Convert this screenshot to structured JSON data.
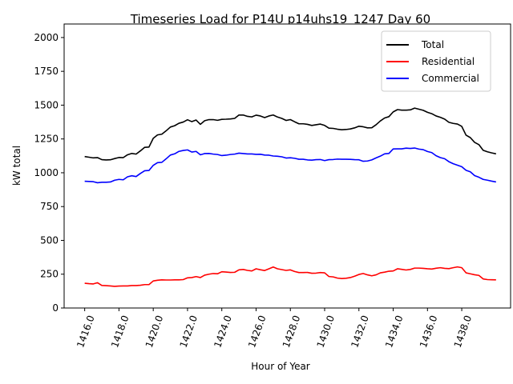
{
  "chart_data": {
    "type": "line",
    "title": "Timeseries Load for P14U p14uhs19_1247  Day 60",
    "xlabel": "Hour of Year",
    "ylabel": "kW total",
    "xlim": [
      1414.8,
      1440.85
    ],
    "ylim": [
      0,
      2100
    ],
    "xticks": [
      1416,
      1418,
      1420,
      1422,
      1424,
      1426,
      1428,
      1430,
      1432,
      1434,
      1436,
      1438
    ],
    "xtick_labels": [
      "1416.0",
      "1418.0",
      "1420.0",
      "1422.0",
      "1424.0",
      "1426.0",
      "1428.0",
      "1430.0",
      "1432.0",
      "1434.0",
      "1436.0",
      "1438.0"
    ],
    "yticks": [
      0,
      250,
      500,
      750,
      1000,
      1250,
      1500,
      1750,
      2000
    ],
    "ytick_labels": [
      "0",
      "250",
      "500",
      "750",
      "1000",
      "1250",
      "1500",
      "1750",
      "2000"
    ],
    "legend_position": "top-right",
    "x_start": 1416.0,
    "x_step": 0.25,
    "series": [
      {
        "name": "Total",
        "color": "#000000",
        "values": [
          1120,
          1115,
          1110,
          1112,
          1097,
          1095,
          1096,
          1105,
          1113,
          1112,
          1133,
          1143,
          1138,
          1162,
          1188,
          1190,
          1255,
          1280,
          1285,
          1310,
          1338,
          1348,
          1366,
          1375,
          1392,
          1378,
          1390,
          1358,
          1385,
          1393,
          1393,
          1388,
          1395,
          1396,
          1398,
          1402,
          1427,
          1427,
          1417,
          1413,
          1426,
          1420,
          1408,
          1420,
          1427,
          1412,
          1402,
          1387,
          1393,
          1377,
          1362,
          1362,
          1358,
          1350,
          1355,
          1360,
          1350,
          1330,
          1328,
          1322,
          1318,
          1320,
          1324,
          1332,
          1344,
          1340,
          1332,
          1333,
          1355,
          1383,
          1405,
          1415,
          1450,
          1467,
          1463,
          1463,
          1465,
          1478,
          1470,
          1462,
          1447,
          1437,
          1420,
          1410,
          1397,
          1373,
          1365,
          1360,
          1343,
          1278,
          1260,
          1225,
          1208,
          1166,
          1155,
          1147,
          1140
        ]
      },
      {
        "name": "Residential",
        "color": "#ff0000",
        "values": [
          183,
          180,
          178,
          187,
          167,
          165,
          163,
          160,
          162,
          163,
          163,
          166,
          166,
          168,
          173,
          173,
          200,
          205,
          208,
          207,
          207,
          208,
          208,
          210,
          223,
          225,
          232,
          225,
          243,
          250,
          255,
          253,
          268,
          266,
          263,
          264,
          282,
          285,
          278,
          274,
          290,
          283,
          277,
          290,
          303,
          290,
          284,
          278,
          282,
          270,
          262,
          262,
          263,
          257,
          258,
          262,
          260,
          233,
          230,
          221,
          218,
          220,
          225,
          235,
          248,
          255,
          245,
          238,
          245,
          260,
          265,
          272,
          274,
          290,
          286,
          281,
          285,
          295,
          295,
          293,
          290,
          288,
          294,
          298,
          293,
          291,
          298,
          304,
          298,
          260,
          253,
          246,
          241,
          215,
          210,
          209,
          208
        ]
      },
      {
        "name": "Commercial",
        "color": "#0000ff",
        "values": [
          937,
          936,
          934,
          926,
          930,
          930,
          932,
          945,
          951,
          948,
          970,
          978,
          972,
          995,
          1015,
          1017,
          1055,
          1075,
          1077,
          1103,
          1131,
          1140,
          1158,
          1165,
          1169,
          1153,
          1158,
          1133,
          1142,
          1143,
          1138,
          1135,
          1127,
          1130,
          1135,
          1138,
          1145,
          1142,
          1139,
          1139,
          1136,
          1137,
          1131,
          1130,
          1124,
          1122,
          1118,
          1109,
          1111,
          1107,
          1100,
          1100,
          1095,
          1093,
          1097,
          1098,
          1090,
          1097,
          1098,
          1101,
          1100,
          1100,
          1099,
          1097,
          1096,
          1085,
          1087,
          1095,
          1110,
          1123,
          1140,
          1143,
          1176,
          1177,
          1177,
          1182,
          1180,
          1183,
          1175,
          1171,
          1157,
          1149,
          1126,
          1112,
          1104,
          1082,
          1067,
          1056,
          1045,
          1018,
          1007,
          979,
          967,
          951,
          945,
          938,
          932
        ]
      }
    ]
  }
}
